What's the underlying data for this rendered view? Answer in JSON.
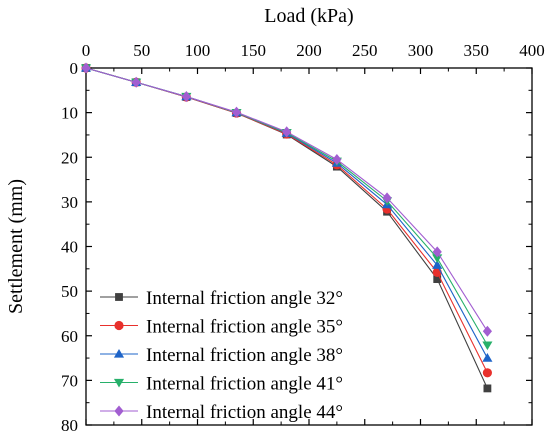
{
  "chart_data": {
    "type": "line",
    "xlabel": "Load (kPa)",
    "ylabel": "Settlement (mm)",
    "xlim": [
      0,
      400
    ],
    "ylim": [
      0,
      80
    ],
    "y_inverted": true,
    "x_axis_position": "top",
    "x_ticks": [
      0,
      50,
      100,
      150,
      200,
      250,
      300,
      350,
      400
    ],
    "y_ticks": [
      0,
      10,
      20,
      30,
      40,
      50,
      60,
      70,
      80
    ],
    "grid": false,
    "legend_position": "bottom-left",
    "x": [
      0,
      45,
      90,
      135,
      180,
      225,
      270,
      315,
      360
    ],
    "series": [
      {
        "name": "Internal friction angle 32°",
        "color": "#404040",
        "marker": "square",
        "values": [
          0,
          3.2,
          6.5,
          10.1,
          14.9,
          22.1,
          32.2,
          47.3,
          71.8
        ]
      },
      {
        "name": "Internal friction angle 35°",
        "color": "#e8302c",
        "marker": "circle",
        "values": [
          0,
          3.2,
          6.5,
          10.1,
          14.8,
          21.7,
          31.6,
          45.8,
          68.3
        ]
      },
      {
        "name": "Internal friction angle 38°",
        "color": "#1e64c8",
        "marker": "triangle-up",
        "values": [
          0,
          3.2,
          6.4,
          10.0,
          14.6,
          21.3,
          30.6,
          44.2,
          65.0
        ]
      },
      {
        "name": "Internal friction angle 41°",
        "color": "#27b06a",
        "marker": "triangle-down",
        "values": [
          0,
          3.2,
          6.4,
          10.0,
          14.5,
          20.9,
          29.8,
          42.6,
          62.1
        ]
      },
      {
        "name": "Internal friction angle 44°",
        "color": "#a25ed1",
        "marker": "diamond",
        "values": [
          0,
          3.2,
          6.4,
          9.9,
          14.3,
          20.5,
          29.1,
          41.2,
          59.0
        ]
      }
    ]
  }
}
